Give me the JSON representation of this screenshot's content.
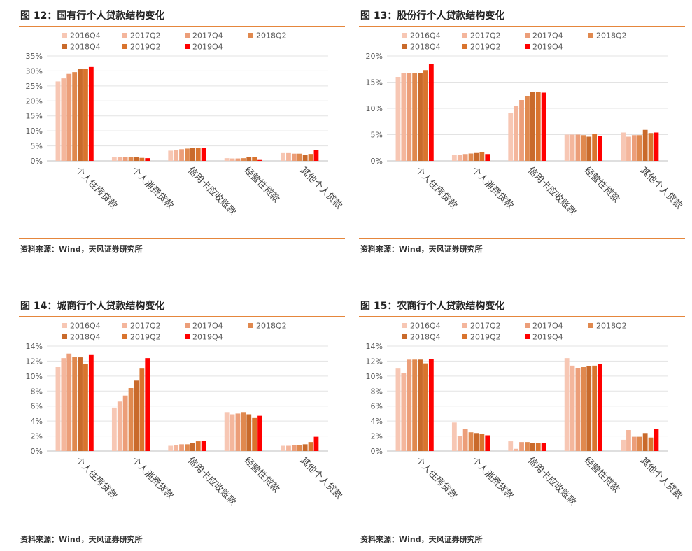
{
  "colors": {
    "accent": "#e5863c",
    "series": [
      "#f7c7b4",
      "#f4b69c",
      "#ec9e79",
      "#e0894f",
      "#c96a2b",
      "#d9742e",
      "#ff0000"
    ]
  },
  "chart_data": [
    {
      "type": "bar",
      "title": "图 12：国有行个人贷款结构变化",
      "source": "资料来源：Wind，天风证券研究所",
      "categories": [
        "个人住房贷款",
        "个人消费贷款",
        "信用卡应收账款",
        "经营性贷款",
        "其他个人贷款"
      ],
      "series": [
        {
          "name": "2016Q4",
          "values": [
            26.5,
            1.2,
            3.4,
            0.9,
            2.6
          ]
        },
        {
          "name": "2017Q2",
          "values": [
            27.5,
            1.4,
            3.7,
            0.8,
            2.6
          ]
        },
        {
          "name": "2017Q4",
          "values": [
            29.0,
            1.4,
            3.9,
            0.8,
            2.4
          ]
        },
        {
          "name": "2018Q2",
          "values": [
            29.6,
            1.3,
            4.1,
            0.9,
            2.4
          ]
        },
        {
          "name": "2018Q4",
          "values": [
            30.7,
            1.2,
            4.3,
            1.2,
            1.9
          ]
        },
        {
          "name": "2019Q2",
          "values": [
            30.8,
            1.0,
            4.2,
            1.4,
            2.3
          ]
        },
        {
          "name": "2019Q4",
          "values": [
            31.3,
            0.9,
            4.3,
            0.3,
            3.5
          ]
        }
      ],
      "ylim": [
        0,
        35
      ],
      "yticks": [
        "0%",
        "5%",
        "10%",
        "15%",
        "20%",
        "25%",
        "30%",
        "35%"
      ],
      "xlabel": "",
      "ylabel": ""
    },
    {
      "type": "bar",
      "title": "图 13：股份行个人贷款结构变化",
      "source": "资料来源：Wind，天风证券研究所",
      "categories": [
        "个人住房贷款",
        "个人消费贷款",
        "信用卡应收账款",
        "经营性贷款",
        "其他个人贷款"
      ],
      "series": [
        {
          "name": "2016Q4",
          "values": [
            16.0,
            1.1,
            9.2,
            5.0,
            5.4
          ]
        },
        {
          "name": "2017Q2",
          "values": [
            16.7,
            1.1,
            10.4,
            5.0,
            4.6
          ]
        },
        {
          "name": "2017Q4",
          "values": [
            16.8,
            1.3,
            11.6,
            5.0,
            4.9
          ]
        },
        {
          "name": "2018Q2",
          "values": [
            16.8,
            1.4,
            12.4,
            4.9,
            4.9
          ]
        },
        {
          "name": "2018Q4",
          "values": [
            16.8,
            1.5,
            13.2,
            4.6,
            5.9
          ]
        },
        {
          "name": "2019Q2",
          "values": [
            17.3,
            1.6,
            13.2,
            5.2,
            5.3
          ]
        },
        {
          "name": "2019Q4",
          "values": [
            18.4,
            1.3,
            13.0,
            4.8,
            5.4
          ]
        }
      ],
      "ylim": [
        0,
        20
      ],
      "yticks": [
        "0%",
        "5%",
        "10%",
        "15%",
        "20%"
      ],
      "xlabel": "",
      "ylabel": ""
    },
    {
      "type": "bar",
      "title": "图 14：城商行个人贷款结构变化",
      "source": "资料来源：Wind，天风证券研究所",
      "categories": [
        "个人住房贷款",
        "个人消费贷款",
        "信用卡应收账款",
        "经营性贷款",
        "其他个人贷款"
      ],
      "series": [
        {
          "name": "2016Q4",
          "values": [
            11.2,
            5.8,
            0.7,
            5.2,
            0.7
          ]
        },
        {
          "name": "2017Q2",
          "values": [
            12.4,
            6.6,
            0.8,
            4.9,
            0.7
          ]
        },
        {
          "name": "2017Q4",
          "values": [
            13.0,
            7.4,
            0.9,
            5.0,
            0.8
          ]
        },
        {
          "name": "2018Q2",
          "values": [
            12.6,
            8.4,
            0.9,
            5.2,
            0.8
          ]
        },
        {
          "name": "2018Q4",
          "values": [
            12.5,
            9.4,
            1.1,
            4.9,
            0.9
          ]
        },
        {
          "name": "2019Q2",
          "values": [
            11.6,
            11.0,
            1.3,
            4.4,
            1.2
          ]
        },
        {
          "name": "2019Q4",
          "values": [
            12.9,
            12.4,
            1.4,
            4.7,
            1.9
          ]
        }
      ],
      "ylim": [
        0,
        14
      ],
      "yticks": [
        "0%",
        "2%",
        "4%",
        "6%",
        "8%",
        "10%",
        "12%",
        "14%"
      ],
      "xlabel": "",
      "ylabel": ""
    },
    {
      "type": "bar",
      "title": "图 15：农商行个人贷款结构变化",
      "source": "资料来源：Wind，天风证券研究所",
      "categories": [
        "个人住房贷款",
        "个人消费贷款",
        "信用卡应收账款",
        "经营性贷款",
        "其他个人贷款"
      ],
      "series": [
        {
          "name": "2016Q4",
          "values": [
            11.0,
            3.8,
            1.3,
            12.4,
            1.5
          ]
        },
        {
          "name": "2017Q2",
          "values": [
            10.4,
            2.0,
            0.3,
            11.4,
            2.8
          ]
        },
        {
          "name": "2017Q4",
          "values": [
            12.2,
            2.9,
            1.2,
            11.1,
            1.9
          ]
        },
        {
          "name": "2018Q2",
          "values": [
            12.2,
            2.5,
            1.2,
            11.2,
            1.9
          ]
        },
        {
          "name": "2018Q4",
          "values": [
            12.2,
            2.4,
            1.1,
            11.3,
            2.4
          ]
        },
        {
          "name": "2019Q2",
          "values": [
            11.7,
            2.3,
            1.1,
            11.4,
            1.8
          ]
        },
        {
          "name": "2019Q4",
          "values": [
            12.3,
            2.1,
            1.1,
            11.6,
            2.9
          ]
        }
      ],
      "ylim": [
        0,
        14
      ],
      "yticks": [
        "0%",
        "2%",
        "4%",
        "6%",
        "8%",
        "10%",
        "12%",
        "14%"
      ],
      "xlabel": "",
      "ylabel": ""
    }
  ]
}
